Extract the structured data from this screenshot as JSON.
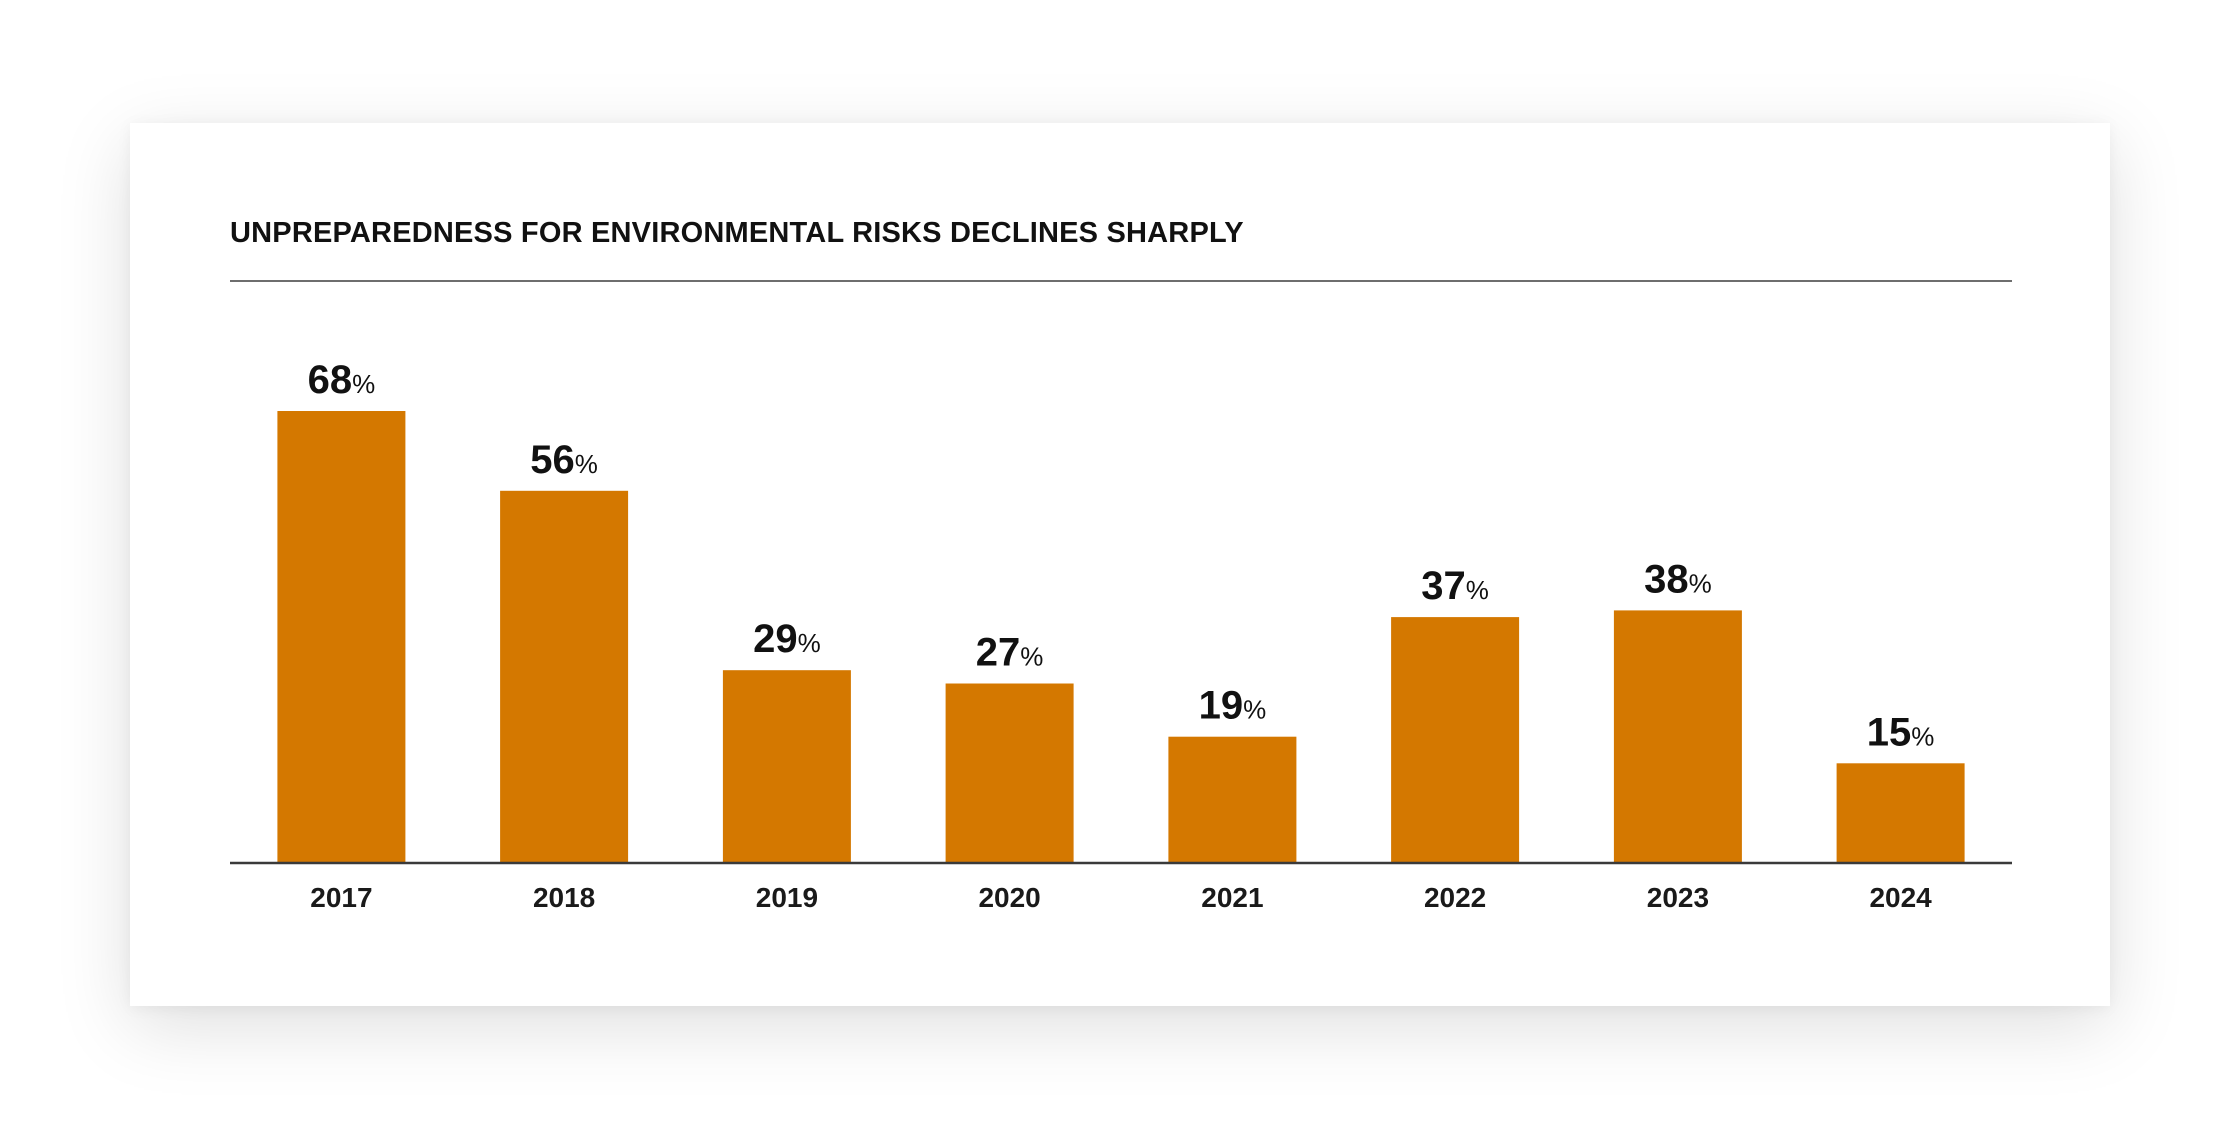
{
  "chart_data": {
    "type": "bar",
    "title": "UNPREPAREDNESS FOR ENVIRONMENTAL RISKS DECLINES SHARPLY",
    "categories": [
      "2017",
      "2018",
      "2019",
      "2020",
      "2021",
      "2022",
      "2023",
      "2024"
    ],
    "values": [
      68,
      56,
      29,
      27,
      19,
      37,
      38,
      15
    ],
    "value_suffix": "%",
    "xlabel": "",
    "ylabel": "",
    "ylim": [
      0,
      68
    ],
    "grid": false,
    "legend": "none",
    "bar_color": "#D47800"
  }
}
